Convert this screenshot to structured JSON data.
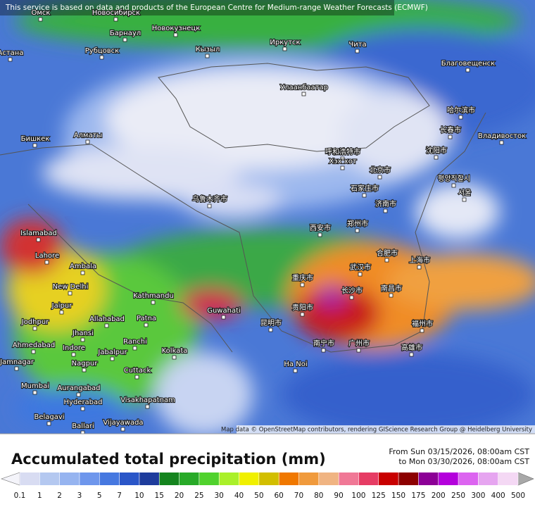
{
  "header": {
    "attribution": "This service is based on data and products of the European Centre for Medium-range Weather Forecasts (ECMWF)"
  },
  "map": {
    "attribution": "Map data © OpenStreetMap contributors, rendering GIScience Research Group @ Heidelberg University",
    "cities": [
      "Омск",
      "Новосибирск",
      "Барнаул",
      "Новокузнецк",
      "Рубцовск",
      "Кызыл",
      "Иркутск",
      "Чита",
      "Астана",
      "Благовещенск",
      "Улаанбаатар",
      "哈尔滨市",
      "长春市",
      "Владивосток",
      "沈阳市",
      "Бишкек",
      "Алматы",
      "呼和浩特市",
      "Хэх хот",
      "北京市",
      "평양직할시",
      "서울",
      "石家庄市",
      "济南市",
      "乌鲁木齐市",
      "Islamabad",
      "Lahore",
      "西安市",
      "郑州市",
      "合肥市",
      "上海市",
      "Ambala",
      "New Delhi",
      "Kathmandu",
      "武汉市",
      "重庆市",
      "长沙市",
      "南昌市",
      "Jaipur",
      "Jodhpur",
      "Guwahati",
      "Allahabad",
      "Patna",
      "贵阳市",
      "昆明市",
      "福州市",
      "Jhansi",
      "Ranchi",
      "Ahmedabad",
      "Indore",
      "Jabalpur",
      "Kolkata",
      "南宁市",
      "广州市",
      "高雄市",
      "Ha Noi",
      "Jamnagar",
      "Nagpur",
      "Cuttack",
      "Mumbai",
      "Aurangabad",
      "Hyderabad",
      "Visakhapatnam",
      "Belagavi",
      "Ballari",
      "Vijayawada"
    ]
  },
  "legend": {
    "title": "Accumulated total precipitation (mm)",
    "period": [
      "From Sun 03/15/2026, 08:00am CST",
      "to Mon 03/30/2026, 08:00am CST"
    ],
    "ticks": [
      0.1,
      1,
      2,
      3,
      5,
      7,
      10,
      15,
      20,
      25,
      30,
      40,
      50,
      60,
      70,
      80,
      90,
      100,
      125,
      150,
      175,
      200,
      250,
      300,
      400,
      500
    ],
    "under_color": "#f4f4fa",
    "over_color": "#a8a8a8",
    "colors": [
      "#d8dcf2",
      "#b4c8f0",
      "#96b4f0",
      "#6e96ec",
      "#4678e0",
      "#2a56c8",
      "#1e3c9c",
      "#14841e",
      "#28aa28",
      "#50d22d",
      "#aaf02a",
      "#f0f000",
      "#d2be00",
      "#f07800",
      "#f09a3c",
      "#f0b482",
      "#f07896",
      "#e63c64",
      "#c80000",
      "#8c0000",
      "#8c0096",
      "#b400dc",
      "#dc64f0",
      "#e6a5f0",
      "#f4d8f4"
    ]
  }
}
